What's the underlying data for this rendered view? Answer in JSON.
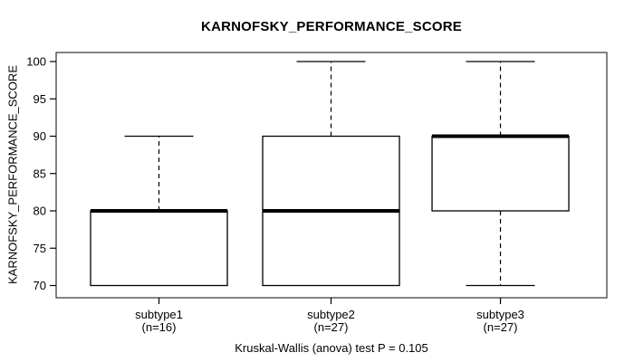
{
  "chart_data": {
    "type": "boxplot",
    "title": "KARNOFSKY_PERFORMANCE_SCORE",
    "ylabel": "KARNOFSKY_PERFORMANCE_SCORE",
    "footer": "Kruskal-Wallis (anova) test P = 0.105",
    "ylim": [
      70,
      100
    ],
    "yticks": [
      70,
      75,
      80,
      85,
      90,
      95,
      100
    ],
    "grid": false,
    "legend": "none",
    "categories": [
      "subtype1",
      "subtype2",
      "subtype3"
    ],
    "category_sublabels": [
      "(n=16)",
      "(n=27)",
      "(n=27)"
    ],
    "series": [
      {
        "name": "subtype1",
        "n": 16,
        "whisker_low": 70,
        "q1": 70,
        "median": 80,
        "q3": 80,
        "whisker_high": 90,
        "outliers": []
      },
      {
        "name": "subtype2",
        "n": 27,
        "whisker_low": 70,
        "q1": 70,
        "median": 80,
        "q3": 90,
        "whisker_high": 100,
        "outliers": []
      },
      {
        "name": "subtype3",
        "n": 27,
        "whisker_low": 70,
        "q1": 80,
        "median": 90,
        "q3": 90,
        "whisker_high": 100,
        "outliers": []
      }
    ],
    "colors": {
      "background": "#ffffff",
      "box_fill": "#ffffff",
      "line": "#000000",
      "frame": "#4d4d4d",
      "text": "#000000"
    }
  }
}
